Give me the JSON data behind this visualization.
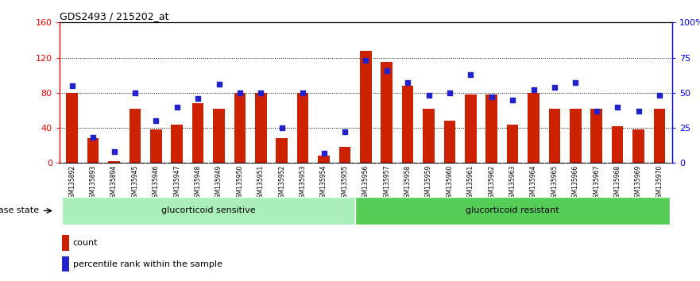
{
  "title": "GDS2493 / 215202_at",
  "samples": [
    "GSM135892",
    "GSM135893",
    "GSM135894",
    "GSM135945",
    "GSM135946",
    "GSM135947",
    "GSM135948",
    "GSM135949",
    "GSM135950",
    "GSM135951",
    "GSM135952",
    "GSM135953",
    "GSM135954",
    "GSM135955",
    "GSM135956",
    "GSM135957",
    "GSM135958",
    "GSM135959",
    "GSM135960",
    "GSM135961",
    "GSM135962",
    "GSM135963",
    "GSM135964",
    "GSM135965",
    "GSM135966",
    "GSM135967",
    "GSM135968",
    "GSM135969",
    "GSM135970"
  ],
  "counts": [
    80,
    28,
    2,
    62,
    38,
    44,
    68,
    62,
    80,
    80,
    28,
    80,
    8,
    18,
    128,
    115,
    88,
    62,
    48,
    78,
    78,
    44,
    80,
    62,
    62,
    62,
    42,
    38,
    62
  ],
  "percentiles": [
    55,
    18,
    8,
    50,
    30,
    40,
    46,
    56,
    50,
    50,
    25,
    50,
    7,
    22,
    73,
    66,
    57,
    48,
    50,
    63,
    47,
    45,
    52,
    54,
    57,
    37,
    40,
    37,
    48
  ],
  "n_sensitive": 14,
  "n_resistant": 15,
  "ylim_left": [
    0,
    160
  ],
  "ylim_right": [
    0,
    100
  ],
  "yticks_left": [
    0,
    40,
    80,
    120,
    160
  ],
  "ytick_labels_left": [
    "0",
    "40",
    "80",
    "120",
    "160"
  ],
  "yticks_right": [
    0,
    25,
    50,
    75,
    100
  ],
  "ytick_labels_right": [
    "0",
    "25",
    "50",
    "75",
    "100%"
  ],
  "bar_color": "#cc2200",
  "dot_color": "#2222cc",
  "sensitive_color": "#aaeebb",
  "resistant_color": "#55cc55",
  "tick_bg_color": "#cccccc",
  "label_count": "count",
  "label_percentile": "percentile rank within the sample",
  "disease_state_label": "disease state",
  "sensitive_label": "glucorticoid sensitive",
  "resistant_label": "glucorticoid resistant"
}
